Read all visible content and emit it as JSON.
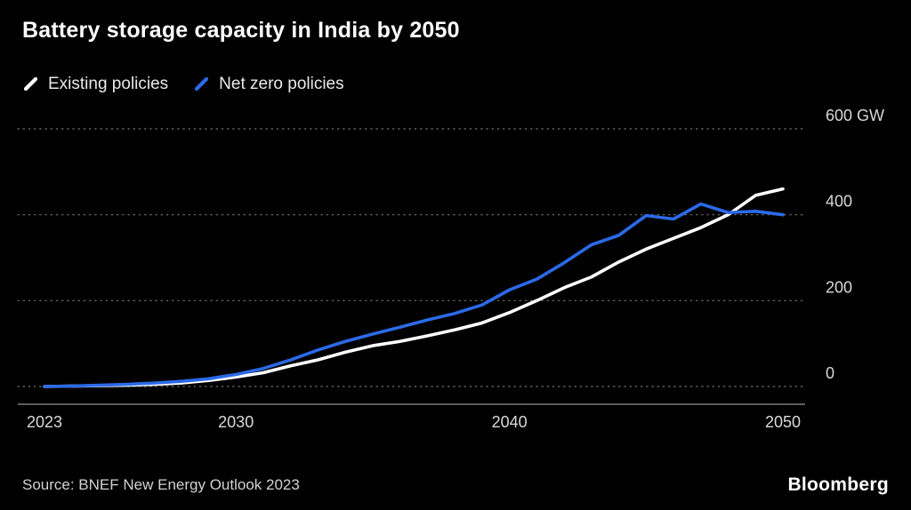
{
  "header": {
    "title": "Battery storage capacity in India by 2050"
  },
  "legend": {
    "items": [
      {
        "label": "Existing policies",
        "color": "#ffffff"
      },
      {
        "label": "Net zero policies",
        "color": "#2b6ae8"
      }
    ]
  },
  "footer": {
    "source": "Source: BNEF New Energy Outlook 2023",
    "brand": "Bloomberg"
  },
  "chart_data": {
    "type": "line",
    "title": "Battery storage capacity in India by 2050",
    "xlabel": "",
    "ylabel": "GW",
    "x": [
      2023,
      2024,
      2025,
      2026,
      2027,
      2028,
      2029,
      2030,
      2031,
      2032,
      2033,
      2034,
      2035,
      2036,
      2037,
      2038,
      2039,
      2040,
      2041,
      2042,
      2043,
      2044,
      2045,
      2046,
      2047,
      2048,
      2049,
      2050
    ],
    "series": [
      {
        "name": "Existing policies",
        "color": "#ffffff",
        "values": [
          0,
          1,
          2,
          3,
          5,
          8,
          14,
          22,
          32,
          48,
          62,
          80,
          95,
          105,
          118,
          132,
          148,
          172,
          200,
          230,
          255,
          290,
          320,
          345,
          370,
          400,
          445,
          460
        ]
      },
      {
        "name": "Net zero policies",
        "color": "#2b6ae8",
        "values": [
          0,
          1,
          3,
          5,
          8,
          12,
          18,
          28,
          42,
          62,
          85,
          105,
          122,
          138,
          155,
          170,
          190,
          225,
          250,
          288,
          330,
          352,
          398,
          390,
          425,
          405,
          408,
          400
        ]
      }
    ],
    "xlim": [
      2023,
      2050
    ],
    "ylim": [
      0,
      600
    ],
    "xticks": [
      2023,
      2030,
      2040,
      2050
    ],
    "yticks": [
      0,
      200,
      400,
      600
    ],
    "ytick_labels": [
      "0",
      "200",
      "400",
      "600 GW"
    ],
    "grid": "horizontal-dotted",
    "legend_position": "top-left",
    "background": "#000000"
  }
}
